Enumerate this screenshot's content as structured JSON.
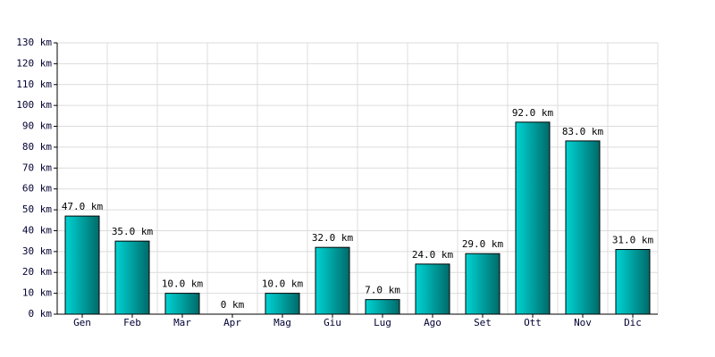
{
  "chart_data": {
    "type": "bar",
    "categories": [
      "Gen",
      "Feb",
      "Mar",
      "Apr",
      "Mag",
      "Giu",
      "Lug",
      "Ago",
      "Set",
      "Ott",
      "Nov",
      "Dic"
    ],
    "values": [
      47,
      35,
      10,
      0,
      10,
      32,
      7,
      24,
      29,
      92,
      83,
      31
    ],
    "value_labels": [
      "47.0 km",
      "35.0 km",
      "10.0 km",
      "0 km",
      "10.0 km",
      "32.0 km",
      "7.0 km",
      "24.0 km",
      "29.0 km",
      "92.0 km",
      "83.0 km",
      "31.0 km"
    ],
    "color": "#00d4d4",
    "ylim": [
      0,
      130
    ],
    "yticks": [
      {
        "value": 0,
        "label": "0 km"
      },
      {
        "value": 10,
        "label": "10 km"
      },
      {
        "value": 20,
        "label": "20 km"
      },
      {
        "value": 30,
        "label": "30 km"
      },
      {
        "value": 40,
        "label": "40 km"
      },
      {
        "value": 50,
        "label": "50 km"
      },
      {
        "value": 60,
        "label": "60 km"
      },
      {
        "value": 70,
        "label": "70 km"
      },
      {
        "value": 80,
        "label": "80 km"
      },
      {
        "value": 90,
        "label": "90 km"
      },
      {
        "value": 100,
        "label": "100 km"
      },
      {
        "value": 110,
        "label": "110 km"
      },
      {
        "value": 120,
        "label": "120 km"
      },
      {
        "value": 130,
        "label": "130 km"
      }
    ],
    "grid": true
  }
}
